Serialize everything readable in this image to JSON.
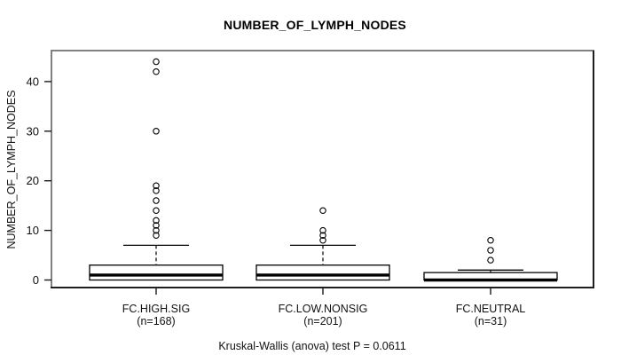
{
  "title": "NUMBER_OF_LYMPH_NODES",
  "y_axis_label": "NUMBER_OF_LYMPH_NODES",
  "caption": "Kruskal-Wallis (anova) test P = 0.0611",
  "chart_data": {
    "type": "boxplot",
    "title": "NUMBER_OF_LYMPH_NODES",
    "xlabel": "",
    "ylabel": "NUMBER_OF_LYMPH_NODES",
    "ylim": [
      -1.6,
      46.2
    ],
    "yticks": [
      0,
      10,
      20,
      30,
      40
    ],
    "grid": false,
    "legend": "none",
    "annotation": "Kruskal-Wallis (anova) test P = 0.0611",
    "categories": [
      "FC.HIGH.SIG",
      "FC.LOW.NONSIG",
      "FC.NEUTRAL"
    ],
    "category_sublabels": [
      "(n=168)",
      "(n=201)",
      "(n=31)"
    ],
    "series": [
      {
        "name": "FC.HIGH.SIG",
        "n": 168,
        "whisker_low": 0,
        "q1": 0,
        "median": 1,
        "q3": 3,
        "whisker_high": 7,
        "outliers": [
          9,
          10,
          11,
          12,
          14,
          16,
          18,
          19,
          30,
          42,
          44
        ]
      },
      {
        "name": "FC.LOW.NONSIG",
        "n": 201,
        "whisker_low": 0,
        "q1": 0,
        "median": 1,
        "q3": 3,
        "whisker_high": 7,
        "outliers": [
          8,
          9,
          10,
          14
        ]
      },
      {
        "name": "FC.NEUTRAL",
        "n": 31,
        "whisker_low": 0,
        "q1": 0,
        "median": 0,
        "q3": 1.5,
        "whisker_high": 2,
        "outliers": [
          4,
          6,
          8
        ]
      }
    ],
    "colors": {
      "background": "#ffffff",
      "box_fill": "#ffffff",
      "stroke": "#000000",
      "text": "#111111",
      "frame_top_left": "#808080",
      "frame_bottom_right": "#1f1f1f"
    }
  }
}
